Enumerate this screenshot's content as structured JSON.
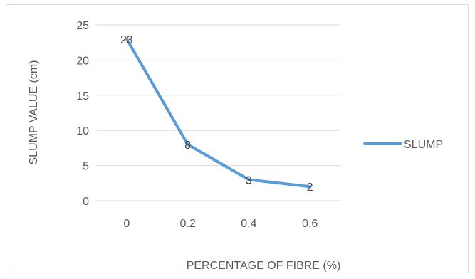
{
  "chart_data": {
    "type": "line",
    "title": "",
    "x": [
      "0",
      "0.2",
      "0.4",
      "0.6"
    ],
    "series": [
      {
        "name": "SLUMP",
        "values": [
          23,
          8,
          3,
          2
        ],
        "color": "#5b9bd5"
      }
    ],
    "data_labels": [
      "23",
      "8",
      "3",
      "2"
    ],
    "xlabel": "PERCENTAGE OF FIBRE (%)",
    "ylabel": "SLUMP VALUE (cm)",
    "ylim": [
      0,
      25
    ],
    "yticks": [
      "0",
      "5",
      "10",
      "15",
      "20",
      "25"
    ],
    "grid": true,
    "legend": "right",
    "colors": {
      "line": "#5b9bd5",
      "grid": "#d9d9d9",
      "text": "#595959"
    }
  }
}
